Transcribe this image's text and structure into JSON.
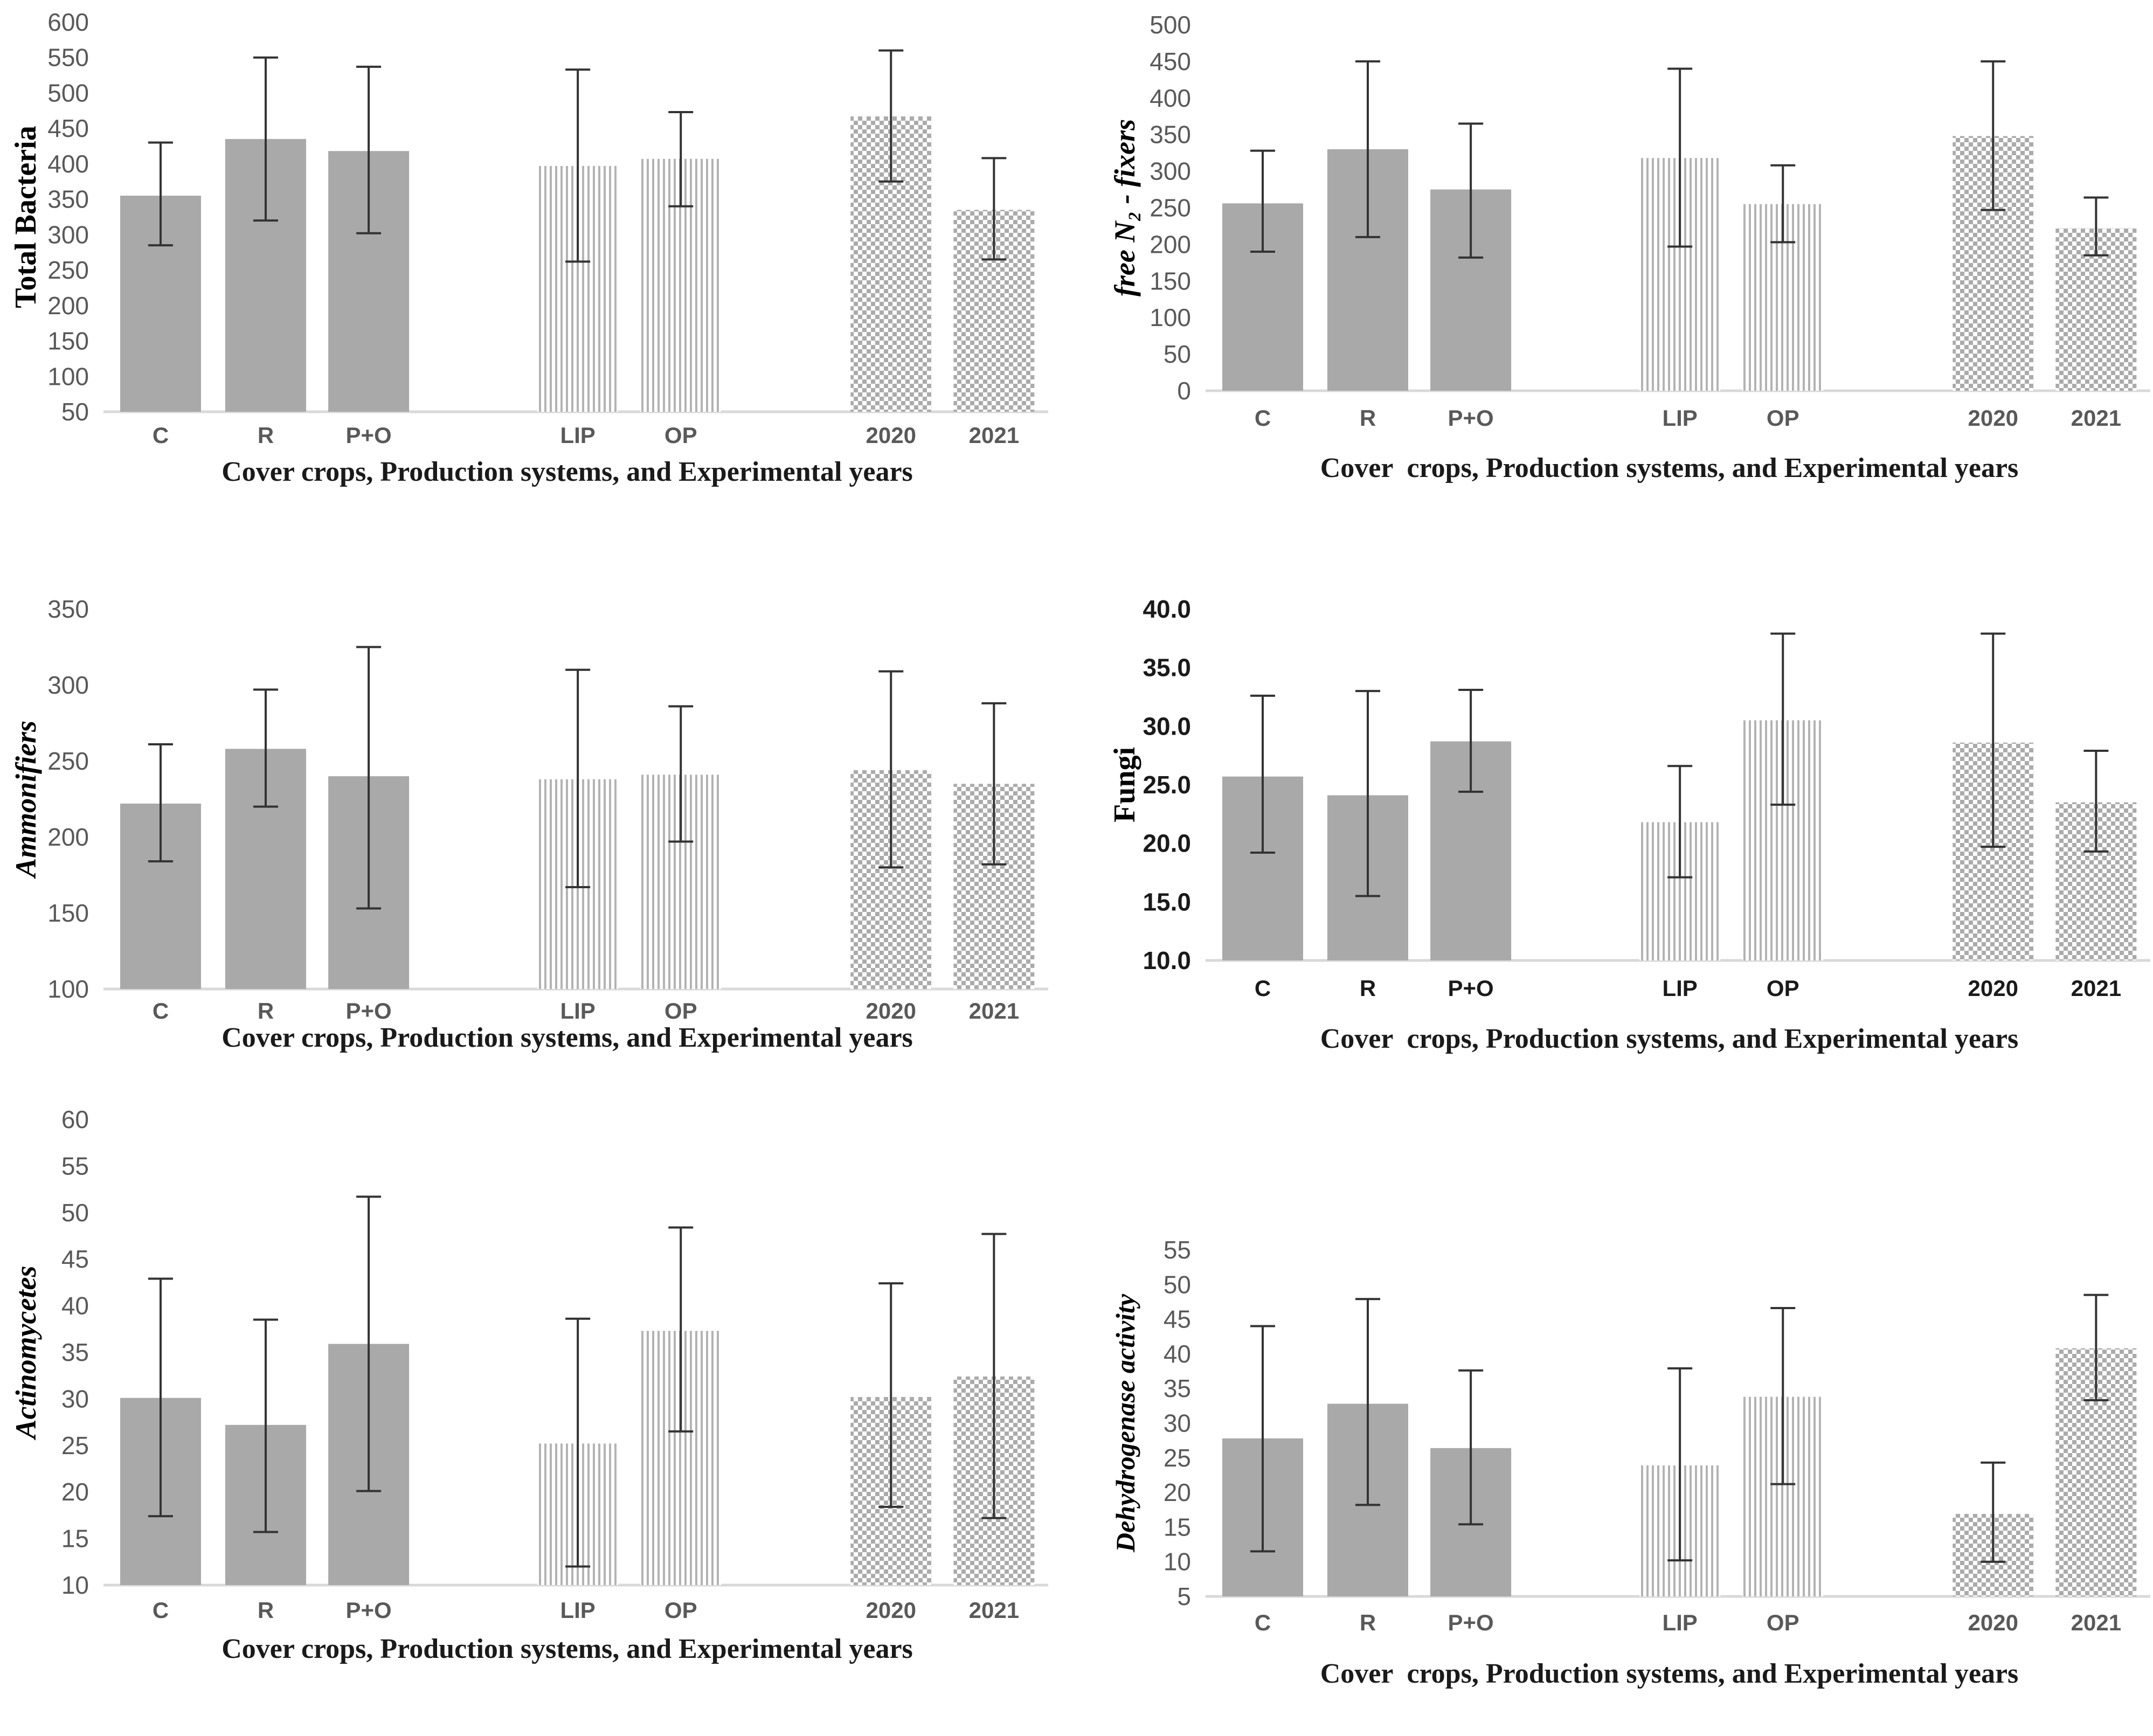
{
  "figure_title": "",
  "colors": {
    "bar_solid": "#a9a9a9",
    "bar_stripe": "#b3b3b3",
    "bar_checker": "#ababab",
    "axis_line": "#d9d9d9",
    "tick_text": "#595959",
    "emph_text": "#1a1a1a",
    "error_bar": "#333333"
  },
  "chart_data": [
    {
      "name": "total-bacteria",
      "type": "bar",
      "y_axis_title": "Total Bacteria",
      "x_axis_title": "Cover crops, Production systems, and Experimental years",
      "ylim": [
        50,
        600
      ],
      "ytick_step": 50,
      "decimals": 0,
      "categories": [
        "C",
        "R",
        "P+O",
        "LIP",
        "OP",
        "2020",
        "2021"
      ],
      "values": [
        355,
        435,
        418,
        397,
        407,
        467,
        335
      ],
      "error_low": [
        285,
        320,
        302,
        262,
        340,
        375,
        265
      ],
      "error_high": [
        430,
        550,
        537,
        533,
        473,
        560,
        408
      ],
      "bar_patterns": [
        "solid",
        "solid",
        "solid",
        "vstripe",
        "vstripe",
        "checker",
        "checker"
      ],
      "grid": false,
      "legend": "none"
    },
    {
      "name": "free-n2-fixers",
      "type": "bar",
      "y_axis_title": "free N₂ - fixers",
      "x_axis_title": "Cover  crops, Production systems, and Experimental years",
      "ylim": [
        0,
        500
      ],
      "ytick_step": 50,
      "decimals": 0,
      "categories": [
        "C",
        "R",
        "P+O",
        "LIP",
        "OP",
        "2020",
        "2021"
      ],
      "values": [
        256,
        330,
        275,
        318,
        255,
        348,
        222
      ],
      "error_low": [
        190,
        210,
        182,
        197,
        203,
        247,
        185
      ],
      "error_high": [
        328,
        450,
        365,
        440,
        308,
        450,
        264
      ],
      "bar_patterns": [
        "solid",
        "solid",
        "solid",
        "vstripe",
        "vstripe",
        "checker",
        "checker"
      ],
      "grid": false,
      "legend": "none"
    },
    {
      "name": "ammonifiers",
      "type": "bar",
      "y_axis_title": "Ammonifiers",
      "x_axis_title": "Cover crops, Production systems, and Experimental years",
      "ylim": [
        100,
        350
      ],
      "ytick_step": 50,
      "decimals": 0,
      "categories": [
        "C",
        "R",
        "P+O",
        "LIP",
        "OP",
        "2020",
        "2021"
      ],
      "values": [
        222,
        258,
        240,
        238,
        241,
        244,
        235
      ],
      "error_low": [
        184,
        220,
        153,
        167,
        197,
        180,
        182
      ],
      "error_high": [
        261,
        297,
        325,
        310,
        286,
        309,
        288
      ],
      "bar_patterns": [
        "solid",
        "solid",
        "solid",
        "vstripe",
        "vstripe",
        "checker",
        "checker"
      ],
      "grid": false,
      "legend": "none"
    },
    {
      "name": "fungi",
      "type": "bar",
      "y_axis_title": "Fungi",
      "x_axis_title": "Cover  crops, Production systems, and Experimental years",
      "ylim": [
        10.0,
        40.0
      ],
      "ytick_step": 5.0,
      "decimals": 1,
      "categories": [
        "C",
        "R",
        "P+O",
        "LIP",
        "OP",
        "2020",
        "2021"
      ],
      "values": [
        25.7,
        24.1,
        28.7,
        21.8,
        30.5,
        28.6,
        23.5
      ],
      "error_low": [
        19.2,
        15.5,
        24.4,
        17.1,
        23.3,
        19.7,
        19.3
      ],
      "error_high": [
        32.6,
        33.0,
        33.1,
        26.6,
        37.9,
        37.9,
        27.9
      ],
      "bar_patterns": [
        "solid",
        "solid",
        "solid",
        "vstripe",
        "vstripe",
        "checker",
        "checker"
      ],
      "grid": false,
      "legend": "none"
    },
    {
      "name": "actinomycetes",
      "type": "bar",
      "y_axis_title": "Actinomycetes",
      "x_axis_title": "Cover crops, Production systems, and Experimental years",
      "ylim": [
        10,
        60
      ],
      "ytick_step": 5,
      "decimals": 0,
      "categories": [
        "C",
        "R",
        "P+O",
        "LIP",
        "OP",
        "2020",
        "2021"
      ],
      "values": [
        30.1,
        27.2,
        35.9,
        25.2,
        37.3,
        30.2,
        32.4
      ],
      "error_low": [
        17.4,
        15.7,
        20.1,
        12.0,
        26.5,
        18.4,
        17.2
      ],
      "error_high": [
        42.9,
        38.5,
        51.7,
        38.6,
        48.4,
        42.4,
        47.7
      ],
      "bar_patterns": [
        "solid",
        "solid",
        "solid",
        "vstripe",
        "vstripe",
        "checker",
        "checker"
      ],
      "grid": false,
      "legend": "none"
    },
    {
      "name": "dehydrogenase-activity",
      "type": "bar",
      "y_axis_title": "Dehydrogenase activity",
      "x_axis_title": "Cover  crops, Production systems, and Experimental years",
      "ylim": [
        5,
        55
      ],
      "ytick_step": 5,
      "decimals": 0,
      "categories": [
        "C",
        "R",
        "P+O",
        "LIP",
        "OP",
        "2020",
        "2021"
      ],
      "values": [
        27.8,
        32.8,
        26.4,
        23.9,
        33.8,
        16.9,
        40.8
      ],
      "error_low": [
        11.5,
        18.2,
        15.4,
        10.2,
        21.2,
        10.0,
        33.3
      ],
      "error_high": [
        44.0,
        47.9,
        37.6,
        37.9,
        46.6,
        24.3,
        48.5
      ],
      "bar_patterns": [
        "solid",
        "solid",
        "solid",
        "vstripe",
        "vstripe",
        "checker",
        "checker"
      ],
      "grid": false,
      "legend": "none"
    }
  ]
}
